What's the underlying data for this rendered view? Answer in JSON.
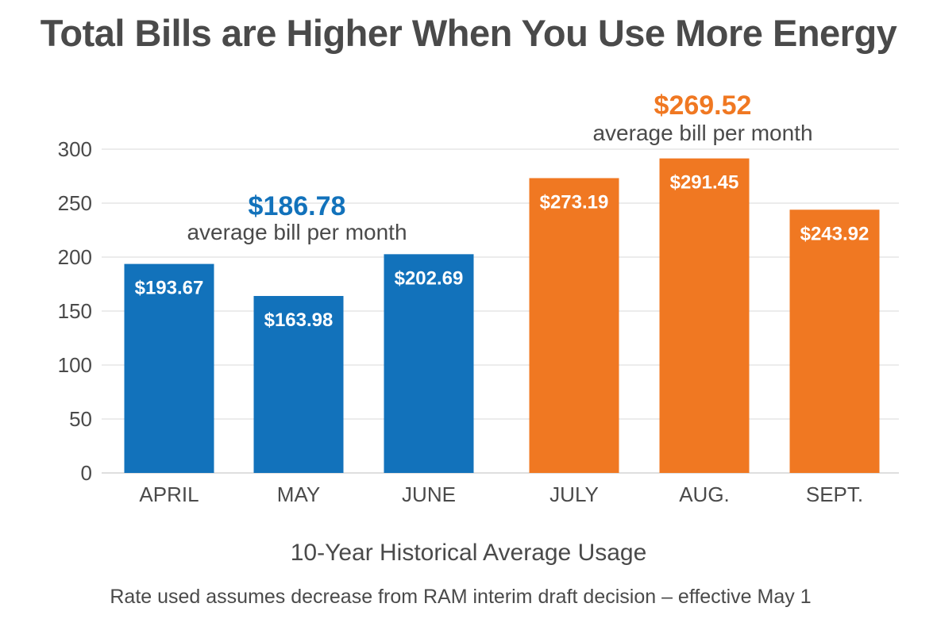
{
  "title": "Total Bills are Higher When You Use More Energy",
  "footnote": "Rate used assumes decrease from RAM interim draft decision – effective May 1",
  "colors": {
    "spring": "#1272bb",
    "summer": "#f07822",
    "text": "#4a4a4a",
    "grid": "#d9d9d9"
  },
  "chart_data": {
    "type": "bar",
    "title": "Total Bills are Higher When You Use More Energy",
    "xlabel": "10-Year Historical Average Usage",
    "ylabel": "",
    "ylim": [
      0,
      300
    ],
    "yticks": [
      0,
      50,
      100,
      150,
      200,
      250,
      300
    ],
    "grid": true,
    "categories": [
      "APRIL",
      "MAY",
      "JUNE",
      "JULY",
      "AUG.",
      "SEPT."
    ],
    "values": [
      193.67,
      163.98,
      202.69,
      273.19,
      291.45,
      243.92
    ],
    "data_labels": [
      "$193.67",
      "$163.98",
      "$202.69",
      "$273.19",
      "$291.45",
      "$243.92"
    ],
    "bar_colors": [
      "#1272bb",
      "#1272bb",
      "#1272bb",
      "#f07822",
      "#f07822",
      "#f07822"
    ],
    "annotations": [
      {
        "value": "$186.78",
        "text": "average bill per month",
        "color": "#1272bb",
        "group": [
          "APRIL",
          "MAY",
          "JUNE"
        ]
      },
      {
        "value": "$269.52",
        "text": "average bill per month",
        "color": "#f07822",
        "group": [
          "JULY",
          "AUG.",
          "SEPT."
        ]
      }
    ]
  }
}
